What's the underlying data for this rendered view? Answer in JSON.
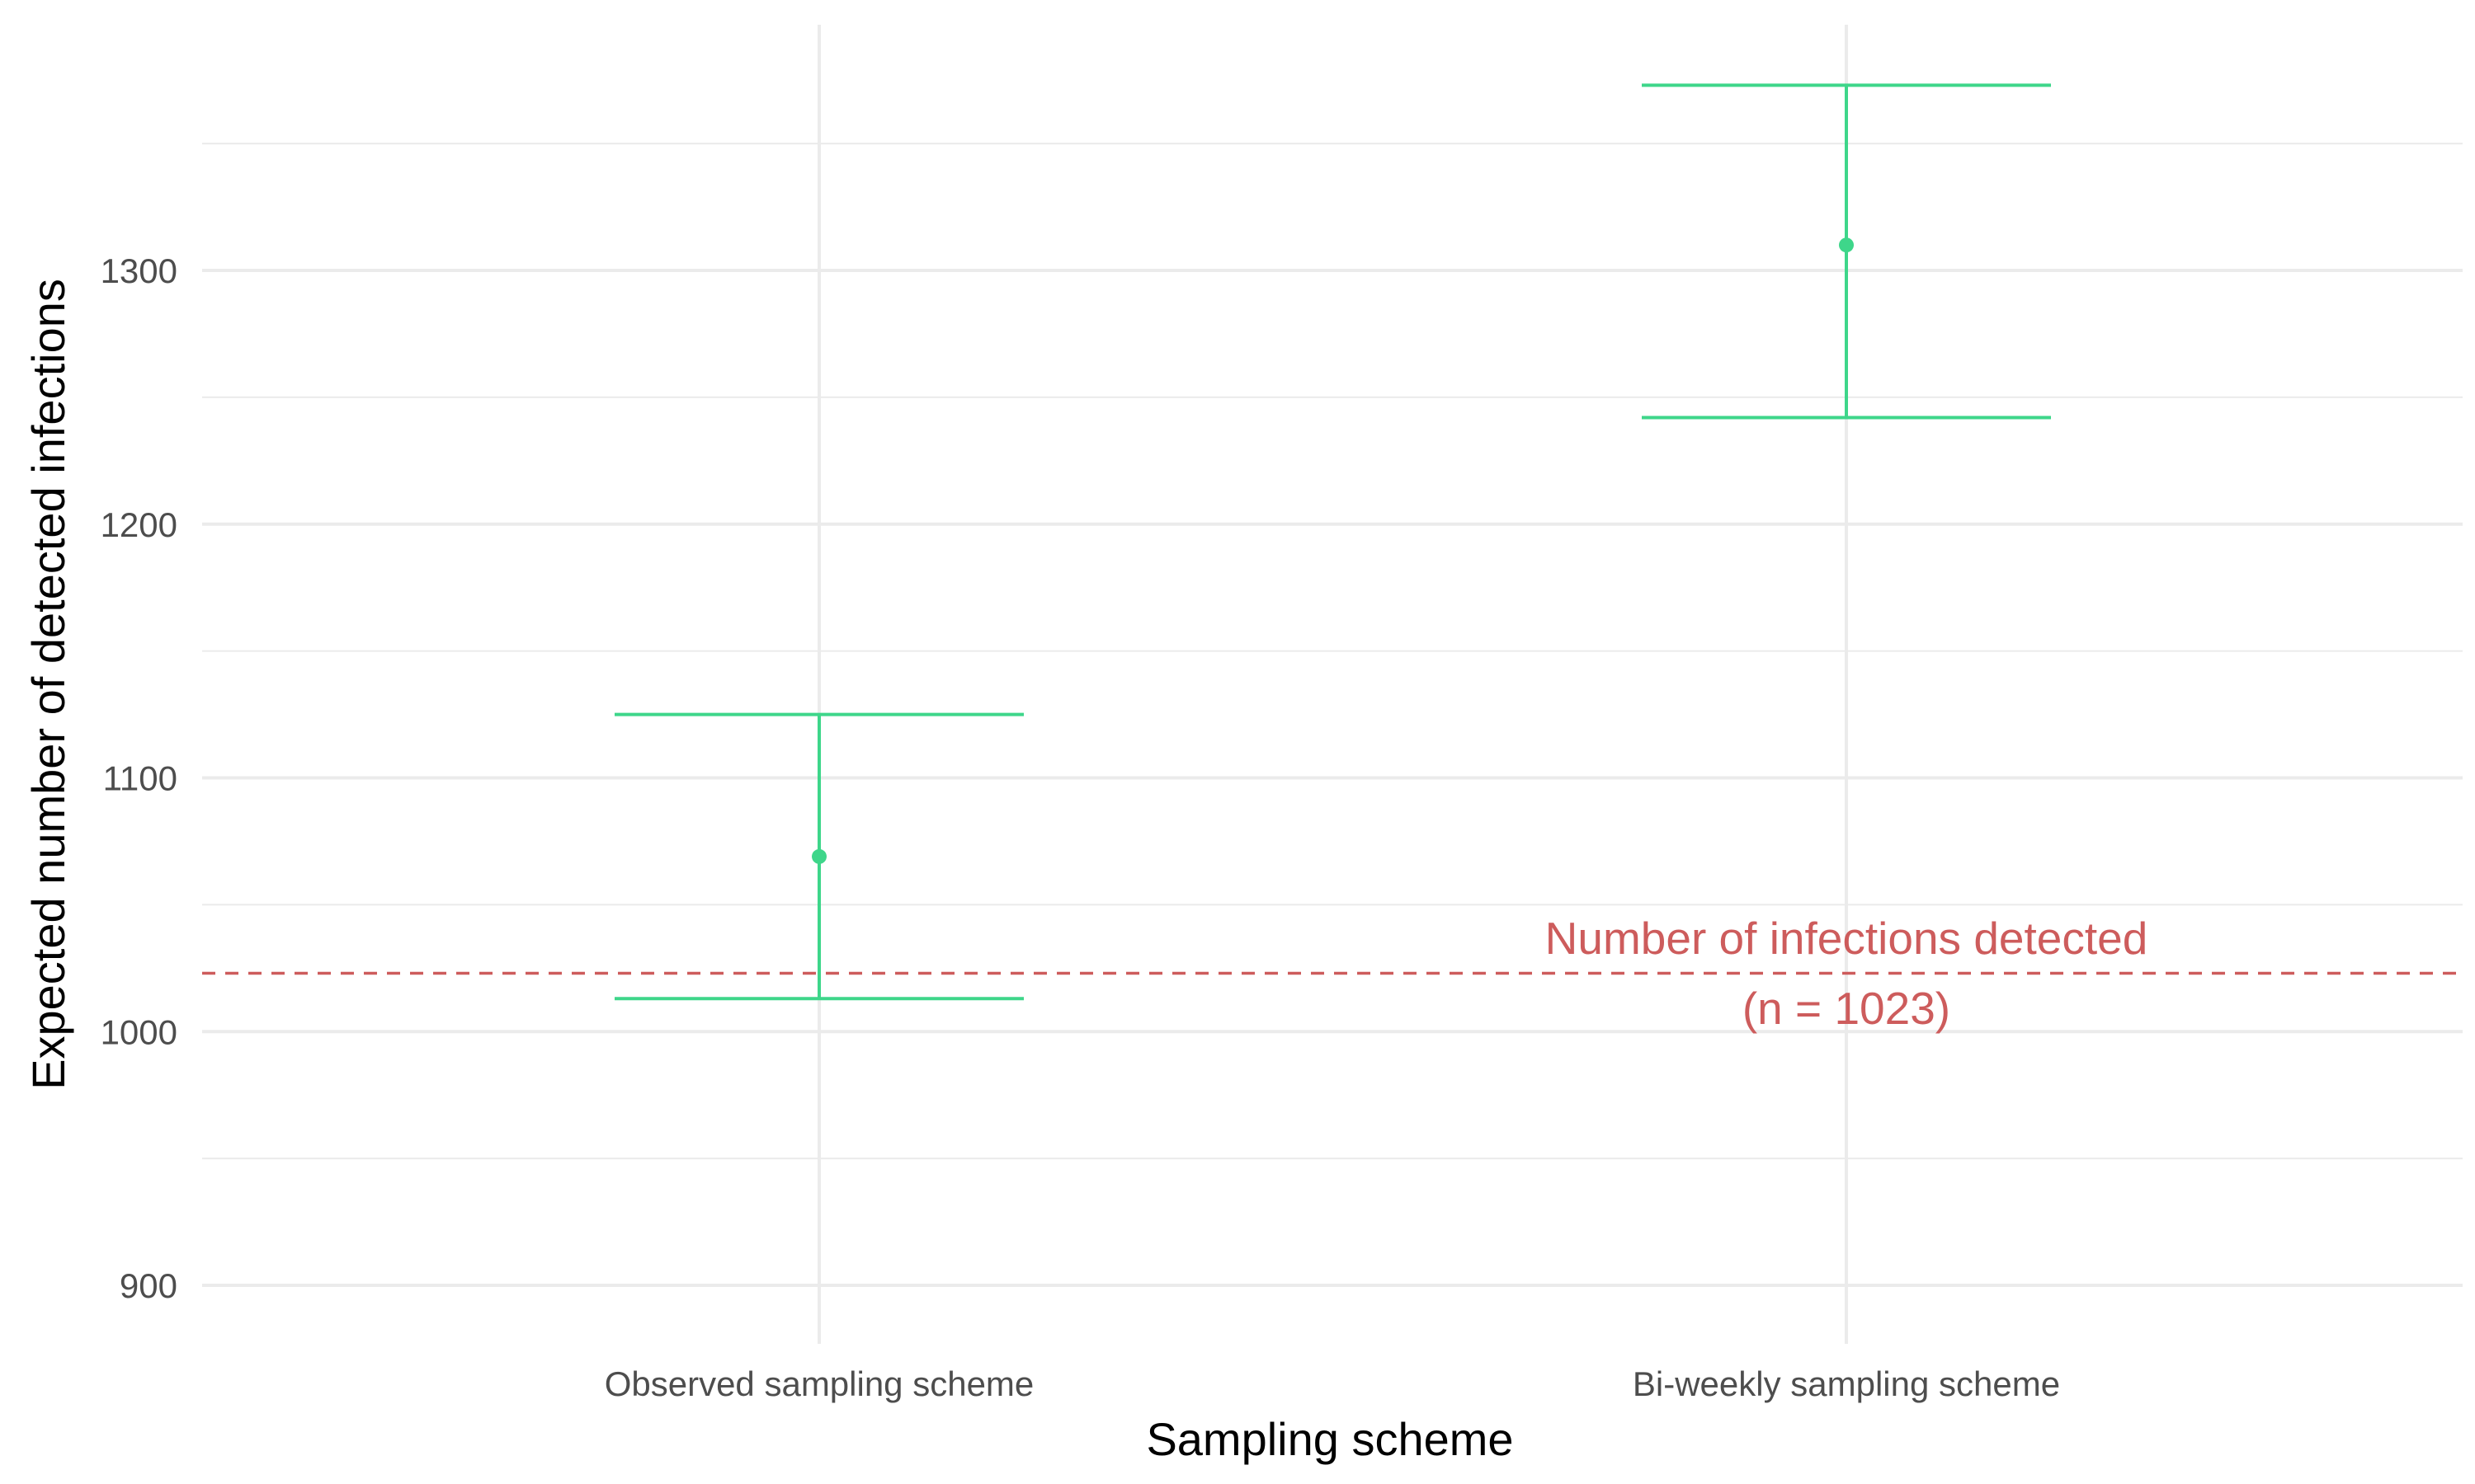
{
  "chart_data": {
    "type": "errorbar",
    "title": "",
    "xlabel": "Sampling scheme",
    "ylabel": "Expected number of detected infections",
    "categories": [
      "Observed sampling scheme",
      "Bi-weekly sampling scheme"
    ],
    "series": [
      {
        "points": [
          {
            "category": "Observed sampling scheme",
            "estimate": 1069,
            "lower": 1013,
            "upper": 1125
          },
          {
            "category": "Bi-weekly sampling scheme",
            "estimate": 1310,
            "lower": 1242,
            "upper": 1373
          }
        ]
      }
    ],
    "reference_line": {
      "value": 1023,
      "label_line1": "Number of infections detected",
      "label_line2": "(n = 1023)",
      "style": "dashed"
    },
    "y_ticks": [
      900,
      1000,
      1100,
      1200,
      1300
    ],
    "ylim": [
      845,
      1398
    ],
    "grid": true,
    "legend": "none",
    "colors": {
      "series": "#3ed68a",
      "reference": "#cd5c5c",
      "grid": "#ebebeb",
      "tick_text": "#4d4d4d",
      "title_text": "#000000"
    }
  }
}
